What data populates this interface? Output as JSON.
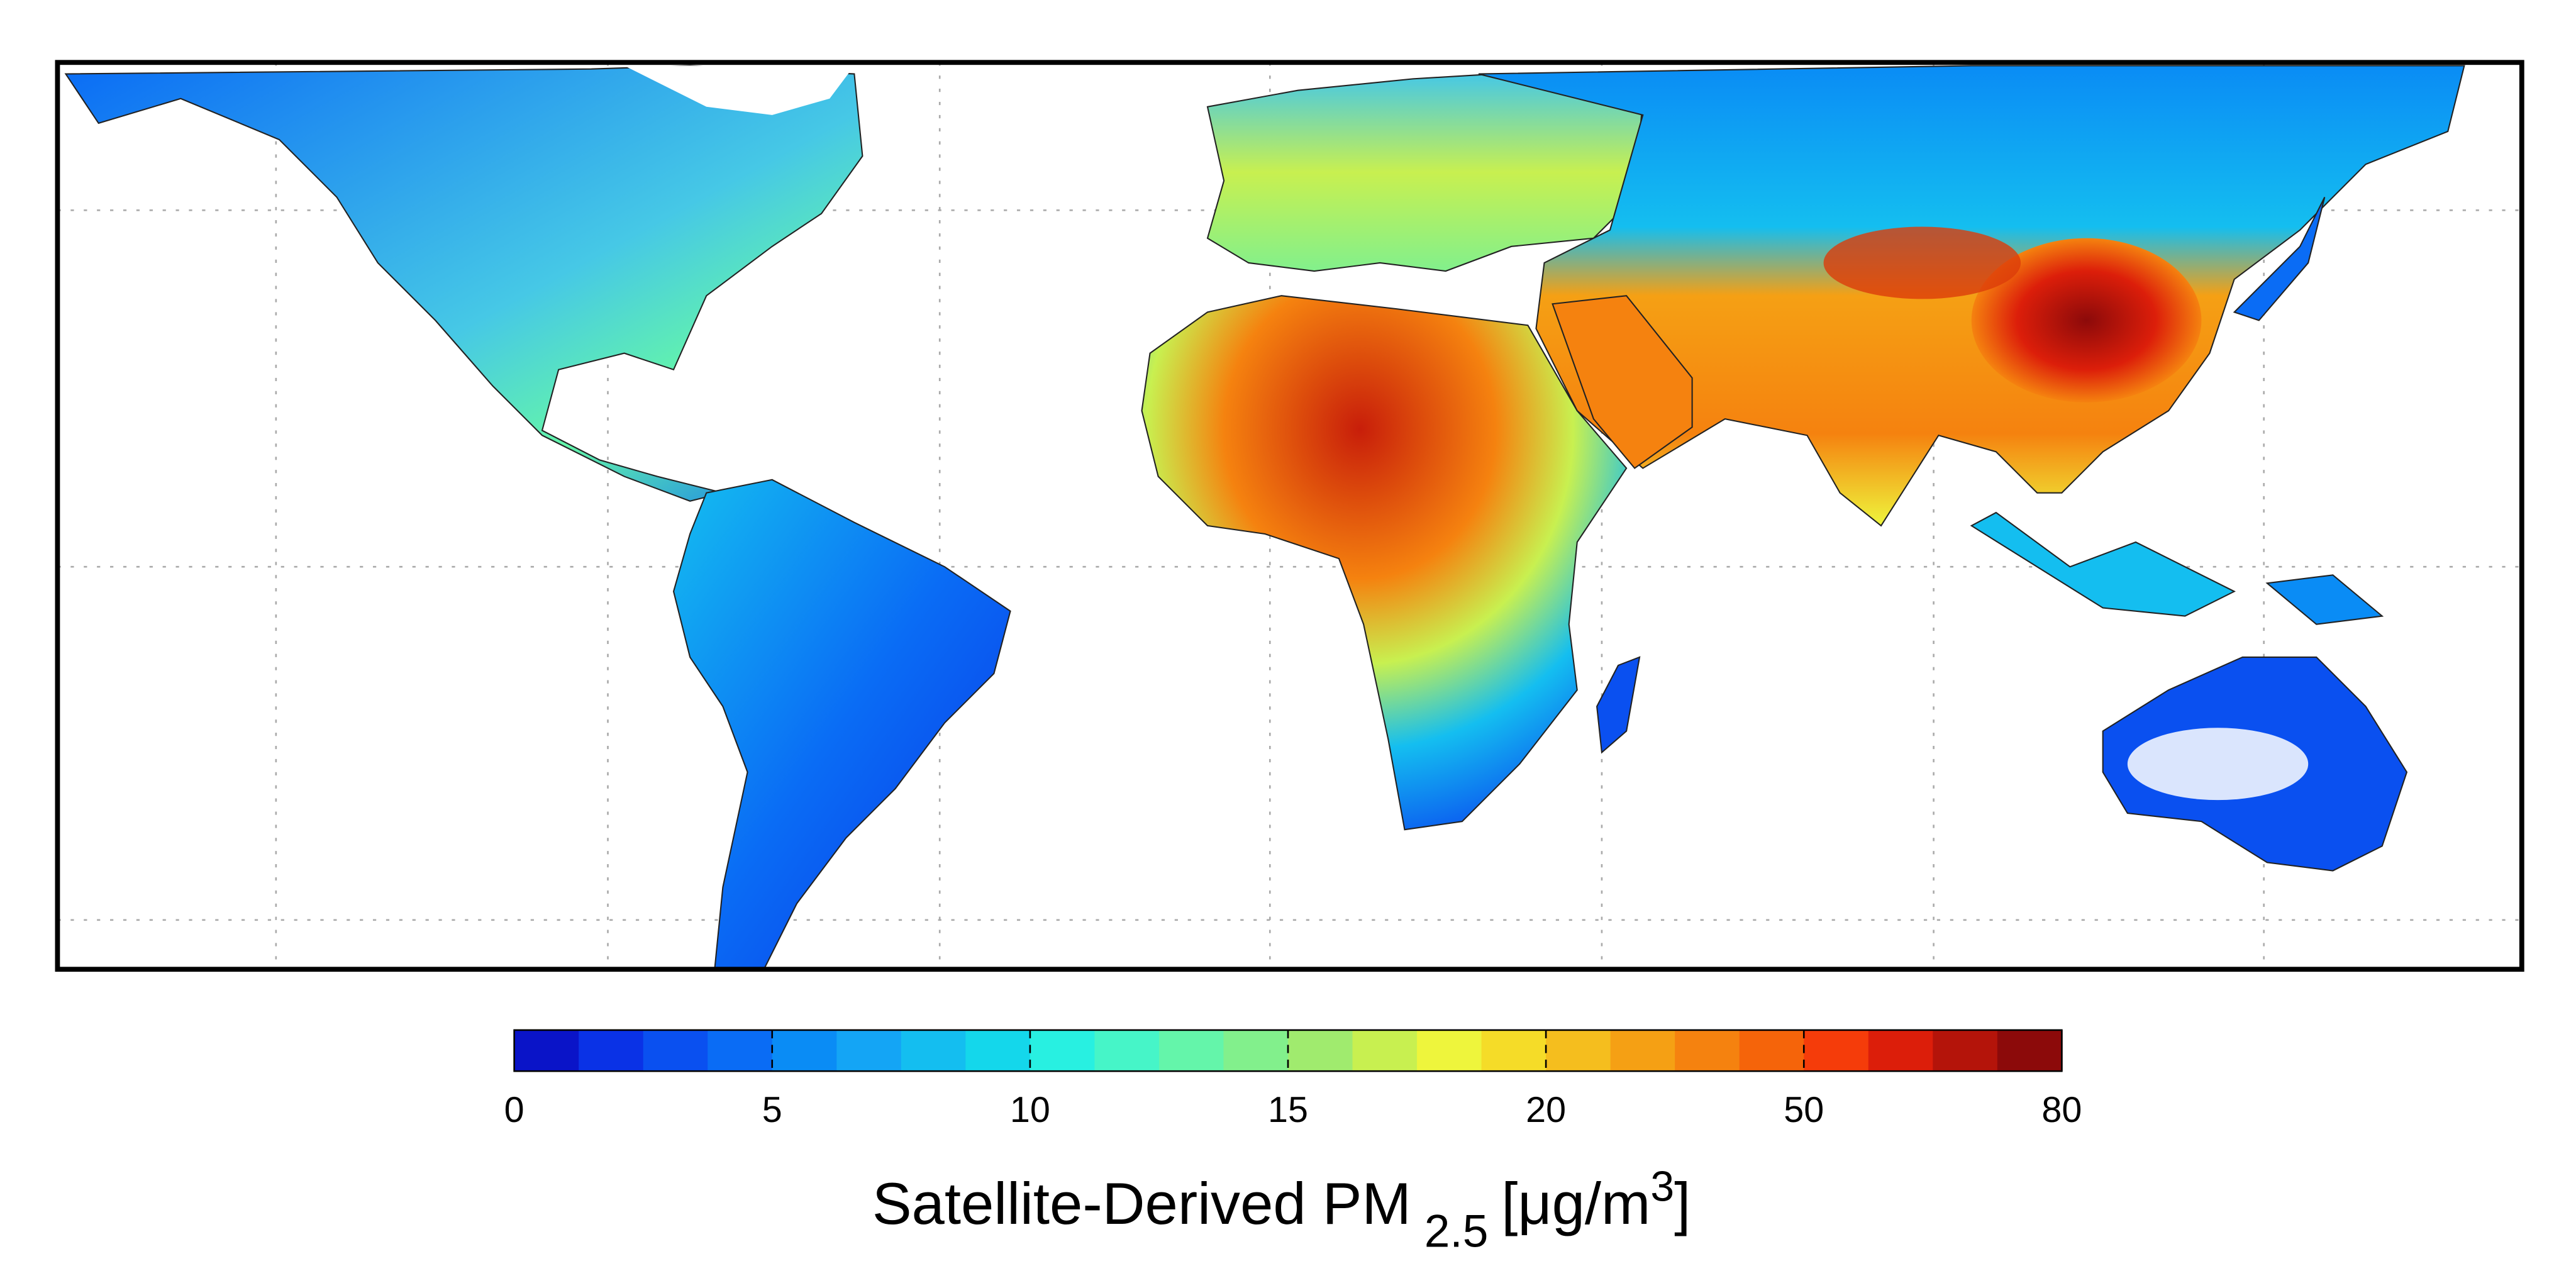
{
  "colorbar": {
    "ticks": [
      "0",
      "5",
      "10",
      "15",
      "20",
      "50",
      "80"
    ],
    "colors": [
      "#0a14c8",
      "#0a32e6",
      "#0a50f0",
      "#0a6cf5",
      "#0a8cf5",
      "#14a5f5",
      "#14bef0",
      "#14d7eb",
      "#28f0e1",
      "#46f5c8",
      "#64f5aa",
      "#82f08c",
      "#a0eb6e",
      "#c8f050",
      "#eef53c",
      "#f5dc28",
      "#f5be1e",
      "#f5a014",
      "#f5820f",
      "#f5640a",
      "#f53c0a",
      "#dc1e0a",
      "#b4140a",
      "#8c0a0a"
    ]
  },
  "label": {
    "text": "Satellite-Derived PM",
    "subscript": "2.5",
    "unit": "[μg/m",
    "superscript": "3",
    "close": "]"
  }
}
